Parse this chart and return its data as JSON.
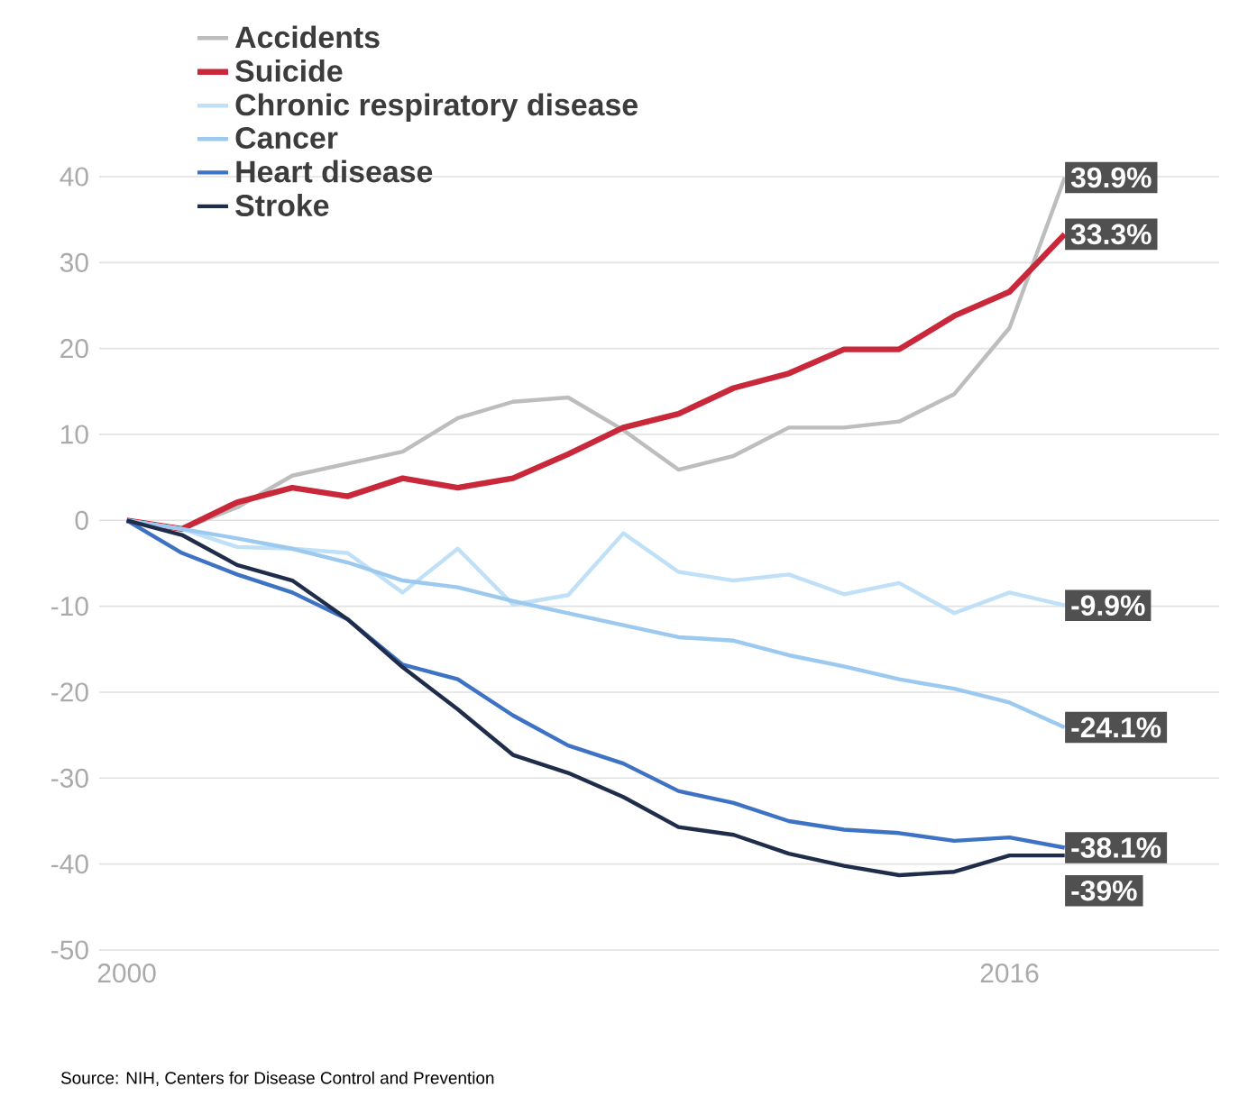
{
  "chart_data": {
    "type": "line",
    "x": [
      2000,
      2001,
      2002,
      2003,
      2004,
      2005,
      2006,
      2007,
      2008,
      2009,
      2010,
      2011,
      2012,
      2013,
      2014,
      2015,
      2016,
      2017
    ],
    "xlim": [
      1999.5,
      2019.8
    ],
    "xticks": [
      2000,
      2016
    ],
    "ylim": [
      -50,
      40
    ],
    "yticks": [
      -50,
      -40,
      -30,
      -20,
      -10,
      0,
      10,
      20,
      30,
      40
    ],
    "grid": "y",
    "legend": "top left",
    "series": [
      {
        "name": "Accidents",
        "color": "#bdbdbd",
        "values": [
          0,
          -1,
          1.5,
          5.2,
          6.6,
          8,
          11.9,
          13.8,
          14.3,
          10.5,
          5.9,
          7.5,
          10.8,
          10.8,
          11.5,
          14.7,
          22.4,
          39.9
        ],
        "value_labels": [
          null,
          null,
          null,
          null,
          null,
          null,
          null,
          null,
          null,
          null,
          null,
          null,
          null,
          null,
          null,
          null,
          null,
          "39.9%"
        ]
      },
      {
        "name": "Suicide",
        "color": "#c8283a",
        "values": [
          0,
          -1,
          2.1,
          3.8,
          2.8,
          4.9,
          3.8,
          4.9,
          7.7,
          10.8,
          12.4,
          15.4,
          17.1,
          19.9,
          19.9,
          23.8,
          26.6,
          33.3
        ],
        "value_labels": [
          null,
          null,
          null,
          null,
          null,
          null,
          null,
          null,
          null,
          null,
          null,
          null,
          null,
          null,
          null,
          null,
          null,
          "33.3%"
        ]
      },
      {
        "name": "Chronic respiratory disease",
        "color": "#bfe0f7",
        "values": [
          0,
          -1,
          -3.1,
          -3.3,
          -3.8,
          -8.4,
          -3.3,
          -9.8,
          -8.7,
          -1.5,
          -6,
          -7,
          -6.3,
          -8.6,
          -7.3,
          -10.8,
          -8.4,
          -9.9
        ],
        "value_labels": [
          null,
          null,
          null,
          null,
          null,
          null,
          null,
          null,
          null,
          null,
          null,
          null,
          null,
          null,
          null,
          null,
          null,
          "-9.9%"
        ]
      },
      {
        "name": "Cancer",
        "color": "#9cc9ef",
        "values": [
          0,
          -1,
          -2.1,
          -3.3,
          -4.9,
          -7,
          -7.8,
          -9.4,
          -10.8,
          -12.2,
          -13.6,
          -14,
          -15.7,
          -17,
          -18.5,
          -19.6,
          -21.2,
          -24.1
        ],
        "value_labels": [
          null,
          null,
          null,
          null,
          null,
          null,
          null,
          null,
          null,
          null,
          null,
          null,
          null,
          null,
          null,
          null,
          null,
          "-24.1%"
        ]
      },
      {
        "name": "Heart disease",
        "color": "#3d72c4",
        "values": [
          0,
          -3.8,
          -6.3,
          -8.4,
          -11.5,
          -16.8,
          -18.5,
          -22.7,
          -26.2,
          -28.3,
          -31.5,
          -32.9,
          -35,
          -36,
          -36.4,
          -37.3,
          -36.9,
          -38.1
        ],
        "value_labels": [
          null,
          null,
          null,
          null,
          null,
          null,
          null,
          null,
          null,
          null,
          null,
          null,
          null,
          null,
          null,
          null,
          null,
          "-38.1%"
        ]
      },
      {
        "name": "Stroke",
        "color": "#1f2d4a",
        "values": [
          0,
          -1.7,
          -5.2,
          -7,
          -11.5,
          -17.1,
          -22,
          -27.3,
          -29.4,
          -32.2,
          -35.7,
          -36.6,
          -38.8,
          -40.2,
          -41.3,
          -40.9,
          -39,
          -39
        ],
        "value_labels": [
          null,
          null,
          null,
          null,
          null,
          null,
          null,
          null,
          null,
          null,
          null,
          null,
          null,
          null,
          null,
          null,
          null,
          "-39%"
        ]
      }
    ],
    "annotations": [
      "Source: NIH, Centers for Disease Control and Prevention"
    ]
  }
}
